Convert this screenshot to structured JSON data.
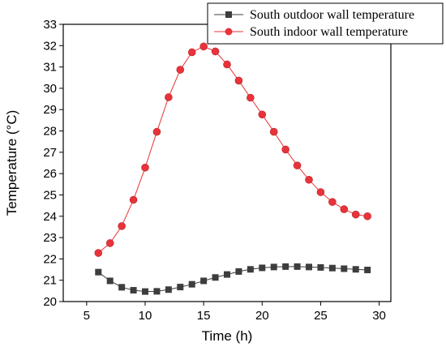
{
  "chart_data": {
    "type": "line",
    "title": "",
    "xlabel": "Time (h)",
    "ylabel": "Temperature (°C)",
    "xlim": [
      3,
      31
    ],
    "ylim": [
      20,
      33
    ],
    "xticks": [
      5,
      10,
      15,
      20,
      25,
      30
    ],
    "yticks": [
      20,
      21,
      22,
      23,
      24,
      25,
      26,
      27,
      28,
      29,
      30,
      31,
      32,
      33
    ],
    "grid": false,
    "legend_position": "top-right",
    "x": [
      6,
      7,
      8,
      9,
      10,
      11,
      12,
      13,
      14,
      15,
      16,
      17,
      18,
      19,
      20,
      21,
      22,
      23,
      24,
      25,
      26,
      27,
      28,
      29
    ],
    "series": [
      {
        "name": "South outdoor wall temperature",
        "color": "#3d3d3d",
        "marker": "square",
        "values": [
          21.38,
          20.97,
          20.67,
          20.53,
          20.47,
          20.48,
          20.56,
          20.68,
          20.81,
          20.97,
          21.13,
          21.27,
          21.41,
          21.51,
          21.58,
          21.62,
          21.64,
          21.64,
          21.62,
          21.6,
          21.57,
          21.54,
          21.51,
          21.48
        ]
      },
      {
        "name": "South indoor wall temperature",
        "color": "#e8333a",
        "marker": "circle",
        "values": [
          22.28,
          22.74,
          23.54,
          24.77,
          26.28,
          27.96,
          29.58,
          30.87,
          31.69,
          31.96,
          31.73,
          31.12,
          30.36,
          29.56,
          28.77,
          27.96,
          27.13,
          26.38,
          25.71,
          25.13,
          24.67,
          24.33,
          24.08,
          24.0
        ]
      }
    ]
  }
}
